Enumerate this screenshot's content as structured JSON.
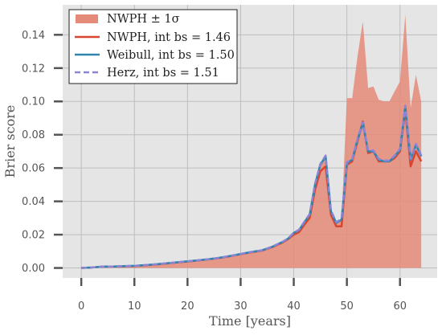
{
  "chart_data": {
    "type": "line",
    "xlabel": "Time [years]",
    "ylabel": "Brier score",
    "xlim": [
      -3.5,
      67
    ],
    "ylim": [
      -0.006,
      0.158
    ],
    "xticks": [
      0,
      10,
      20,
      30,
      40,
      50,
      60
    ],
    "yticks": [
      0.0,
      0.02,
      0.04,
      0.06,
      0.08,
      0.1,
      0.12,
      0.14
    ],
    "ytick_labels": [
      "0.00",
      "0.02",
      "0.04",
      "0.06",
      "0.08",
      "0.10",
      "0.12",
      "0.14"
    ],
    "grid": true,
    "legend_position": "upper-left",
    "x": [
      0,
      2,
      4,
      6,
      8,
      10,
      12,
      14,
      16,
      18,
      20,
      22,
      24,
      26,
      28,
      30,
      32,
      34,
      36,
      38,
      39,
      40,
      41,
      42,
      43,
      44,
      45,
      46,
      47,
      48,
      49,
      50,
      51,
      52,
      53,
      54,
      55,
      56,
      57,
      58,
      59,
      60,
      61,
      62,
      63,
      64
    ],
    "band": {
      "name": "NWPH ± 1σ",
      "color": "#e58a78",
      "lower": [
        0,
        0,
        0,
        0,
        0,
        0,
        0,
        0,
        0,
        0,
        0,
        0,
        0,
        0,
        0,
        0,
        0,
        0,
        0,
        0,
        0,
        0,
        0,
        0,
        0,
        0,
        0,
        0,
        0,
        0,
        0,
        0,
        0,
        0,
        0,
        0,
        0,
        0,
        0,
        0,
        0,
        0,
        0,
        0,
        0,
        0
      ],
      "upper": [
        0.0,
        0.0003,
        0.0008,
        0.0009,
        0.0011,
        0.0013,
        0.0017,
        0.0022,
        0.0028,
        0.0034,
        0.004,
        0.0046,
        0.0054,
        0.0062,
        0.0073,
        0.0085,
        0.0097,
        0.0108,
        0.013,
        0.016,
        0.018,
        0.021,
        0.023,
        0.028,
        0.032,
        0.05,
        0.062,
        0.067,
        0.034,
        0.027,
        0.029,
        0.102,
        0.102,
        0.127,
        0.148,
        0.108,
        0.109,
        0.101,
        0.1,
        0.1,
        0.106,
        0.112,
        0.152,
        0.096,
        0.116,
        0.1
      ]
    },
    "series": [
      {
        "name": "NWPH, int bs = 1.46",
        "color": "#d9452e",
        "dash": "solid",
        "values": [
          0.0,
          0.0003,
          0.0008,
          0.0009,
          0.001,
          0.0012,
          0.0016,
          0.0021,
          0.0027,
          0.0033,
          0.0039,
          0.0045,
          0.0052,
          0.006,
          0.0071,
          0.0083,
          0.0094,
          0.0104,
          0.0126,
          0.0155,
          0.0175,
          0.02,
          0.0215,
          0.026,
          0.03,
          0.047,
          0.058,
          0.061,
          0.032,
          0.025,
          0.025,
          0.062,
          0.064,
          0.076,
          0.088,
          0.069,
          0.07,
          0.064,
          0.064,
          0.064,
          0.066,
          0.07,
          0.095,
          0.061,
          0.07,
          0.064
        ]
      },
      {
        "name": "Weibull, int bs = 1.50",
        "color": "#2e86ab",
        "dash": "solid",
        "values": [
          0.0,
          0.0003,
          0.0008,
          0.0009,
          0.0011,
          0.0013,
          0.0017,
          0.0022,
          0.0028,
          0.0034,
          0.004,
          0.0046,
          0.0053,
          0.0061,
          0.0072,
          0.0084,
          0.0096,
          0.0106,
          0.0128,
          0.0158,
          0.0178,
          0.021,
          0.0228,
          0.0275,
          0.032,
          0.05,
          0.062,
          0.067,
          0.034,
          0.027,
          0.029,
          0.063,
          0.065,
          0.077,
          0.087,
          0.07,
          0.07,
          0.065,
          0.064,
          0.064,
          0.067,
          0.071,
          0.097,
          0.065,
          0.074,
          0.067
        ]
      },
      {
        "name": "Herz, int bs = 1.51",
        "color": "#8b84d7",
        "dash": "dashed",
        "values": [
          0.0,
          0.0003,
          0.0008,
          0.0009,
          0.0011,
          0.0013,
          0.0017,
          0.0022,
          0.0028,
          0.0034,
          0.004,
          0.0046,
          0.0053,
          0.0061,
          0.0072,
          0.0084,
          0.0096,
          0.0106,
          0.0129,
          0.0159,
          0.0179,
          0.0212,
          0.023,
          0.0278,
          0.0324,
          0.0505,
          0.0625,
          0.0675,
          0.0345,
          0.0275,
          0.0295,
          0.0635,
          0.065,
          0.0775,
          0.0875,
          0.0705,
          0.0705,
          0.0655,
          0.0645,
          0.0645,
          0.0675,
          0.0715,
          0.0975,
          0.0655,
          0.0745,
          0.0675
        ]
      }
    ]
  }
}
